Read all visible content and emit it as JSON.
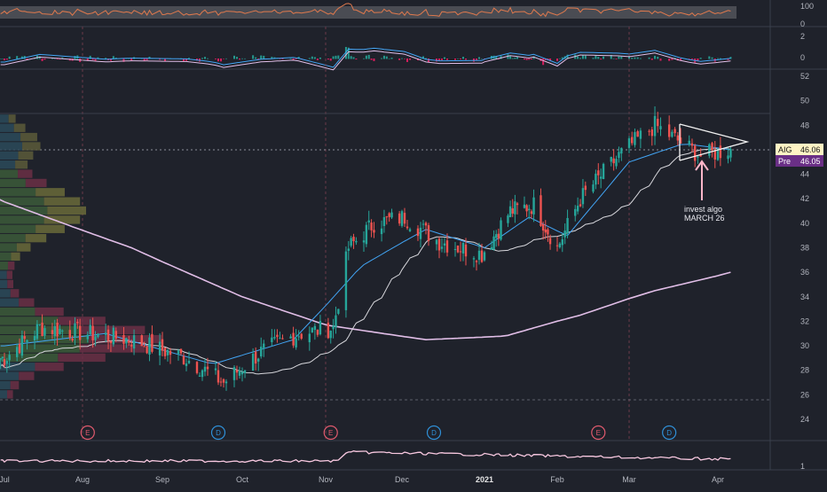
{
  "symbol_tag": {
    "label": "AIG",
    "value": "46.06",
    "color": "#fff4c4"
  },
  "pre_tag": {
    "label": "Pre",
    "value": "46.05",
    "color": "#6a2f86"
  },
  "annotation": {
    "line1": "invest algo",
    "line2": "MARCH 26"
  },
  "x_axis": {
    "labels": [
      "Jul",
      "Aug",
      "Sep",
      "Oct",
      "Nov",
      "Dec",
      "2021",
      "Feb",
      "Mar",
      "Apr"
    ]
  },
  "rsi_panel": {
    "ticks": [
      "100",
      "0"
    ]
  },
  "macd_panel": {
    "ticks": [
      "2",
      "0"
    ]
  },
  "volume_panel": {
    "ticks": [
      "1"
    ]
  },
  "earnings_markers": [
    "E",
    "D",
    "E",
    "D",
    "E",
    "D"
  ],
  "colors": {
    "background": "#1f222b",
    "up": "#26a69a",
    "down": "#ef5350",
    "ma_fast": "#42a5f5",
    "ma_slow": "#e1bee7",
    "rsi": "#e0794d",
    "grid": "#2a2e39",
    "volume_line": "#f8c8e0"
  },
  "chart_data": {
    "type": "candlestick",
    "title": "",
    "y_ticks": [
      24,
      26,
      28,
      30,
      32,
      34,
      36,
      38,
      40,
      42,
      44,
      46,
      48,
      50,
      52
    ],
    "ylim": [
      23,
      52.5
    ],
    "x_months": [
      "Jul",
      "Aug",
      "Sep",
      "Oct",
      "Nov",
      "Dec",
      "2021",
      "Feb",
      "Mar",
      "Apr"
    ],
    "approx_close_path": [
      {
        "date": "2020-07-01",
        "close": 29.0
      },
      {
        "date": "2020-07-15",
        "close": 31.5
      },
      {
        "date": "2020-08-03",
        "close": 31.0
      },
      {
        "date": "2020-08-20",
        "close": 30.5
      },
      {
        "date": "2020-09-10",
        "close": 29.0
      },
      {
        "date": "2020-09-24",
        "close": 27.0
      },
      {
        "date": "2020-10-08",
        "close": 29.5
      },
      {
        "date": "2020-10-22",
        "close": 31.0
      },
      {
        "date": "2020-11-04",
        "close": 31.5
      },
      {
        "date": "2020-11-10",
        "close": 38.0
      },
      {
        "date": "2020-11-20",
        "close": 40.0
      },
      {
        "date": "2020-12-02",
        "close": 40.5
      },
      {
        "date": "2020-12-15",
        "close": 38.5
      },
      {
        "date": "2020-12-31",
        "close": 37.5
      },
      {
        "date": "2021-01-12",
        "close": 41.0
      },
      {
        "date": "2021-01-22",
        "close": 41.5
      },
      {
        "date": "2021-02-01",
        "close": 38.0
      },
      {
        "date": "2021-02-10",
        "close": 42.0
      },
      {
        "date": "2021-02-25",
        "close": 45.5
      },
      {
        "date": "2021-03-10",
        "close": 48.0
      },
      {
        "date": "2021-03-26",
        "close": 45.5
      },
      {
        "date": "2021-04-06",
        "close": 46.06
      }
    ],
    "ma_fast_path": [
      {
        "date": "2020-07-01",
        "value": 30.0
      },
      {
        "date": "2020-08-10",
        "value": 31.0
      },
      {
        "date": "2020-09-20",
        "value": 28.5
      },
      {
        "date": "2020-10-20",
        "value": 30.5
      },
      {
        "date": "2020-11-15",
        "value": 36.5
      },
      {
        "date": "2020-12-10",
        "value": 39.5
      },
      {
        "date": "2021-01-01",
        "value": 38.0
      },
      {
        "date": "2021-01-20",
        "value": 40.5
      },
      {
        "date": "2021-02-05",
        "value": 39.0
      },
      {
        "date": "2021-03-01",
        "value": 45.0
      },
      {
        "date": "2021-03-20",
        "value": 46.5
      },
      {
        "date": "2021-04-06",
        "value": 46.0
      }
    ],
    "ma_200_path": [
      {
        "date": "2020-06-25",
        "value": 42.2
      },
      {
        "date": "2020-08-20",
        "value": 38.0
      },
      {
        "date": "2020-10-01",
        "value": 34.0
      },
      {
        "date": "2020-11-01",
        "value": 31.7
      },
      {
        "date": "2020-12-10",
        "value": 30.5
      },
      {
        "date": "2021-01-10",
        "value": 30.8
      },
      {
        "date": "2021-02-10",
        "value": 32.5
      },
      {
        "date": "2021-03-10",
        "value": 34.5
      },
      {
        "date": "2021-04-06",
        "value": 36.0
      }
    ],
    "last_price": 46.06,
    "premarket_price": 46.05
  }
}
